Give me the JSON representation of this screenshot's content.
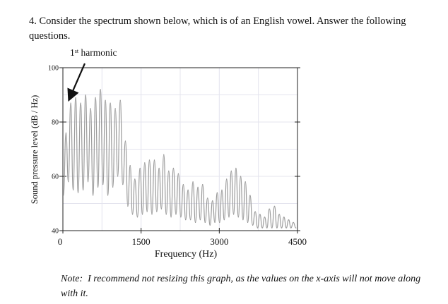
{
  "question": {
    "text": "4. Consider the spectrum shown below, which is of an English vowel. Answer the following questions."
  },
  "annotation": {
    "ordinal": "1",
    "ordinal_suffix": "st",
    "label": "harmonic"
  },
  "chart_data": {
    "type": "line",
    "title": "",
    "xlabel": "Frequency (Hz)",
    "ylabel": "Sound pressure level (dB / Hz)",
    "xlim": [
      0,
      4500
    ],
    "ylim": [
      40,
      100
    ],
    "x_ticks": [
      "0",
      "1500",
      "3000",
      "4500"
    ],
    "y_ticks": [
      "100",
      "80",
      "60",
      "40"
    ],
    "grid": true,
    "line_color": "#9a9a9a",
    "grid_color": "#e4e4ee",
    "peaks": [
      {
        "x": 60,
        "y": 76
      },
      {
        "x": 150,
        "y": 87
      },
      {
        "x": 245,
        "y": 89
      },
      {
        "x": 340,
        "y": 87
      },
      {
        "x": 435,
        "y": 90
      },
      {
        "x": 530,
        "y": 85
      },
      {
        "x": 625,
        "y": 89
      },
      {
        "x": 720,
        "y": 92
      },
      {
        "x": 815,
        "y": 88
      },
      {
        "x": 910,
        "y": 87
      },
      {
        "x": 1005,
        "y": 85
      },
      {
        "x": 1100,
        "y": 88
      },
      {
        "x": 1200,
        "y": 73
      },
      {
        "x": 1290,
        "y": 64
      },
      {
        "x": 1380,
        "y": 59
      },
      {
        "x": 1480,
        "y": 63
      },
      {
        "x": 1570,
        "y": 65
      },
      {
        "x": 1660,
        "y": 66
      },
      {
        "x": 1755,
        "y": 66
      },
      {
        "x": 1845,
        "y": 63
      },
      {
        "x": 1935,
        "y": 68
      },
      {
        "x": 2030,
        "y": 62
      },
      {
        "x": 2120,
        "y": 63
      },
      {
        "x": 2215,
        "y": 61
      },
      {
        "x": 2310,
        "y": 57
      },
      {
        "x": 2400,
        "y": 55
      },
      {
        "x": 2495,
        "y": 58
      },
      {
        "x": 2590,
        "y": 56
      },
      {
        "x": 2680,
        "y": 57
      },
      {
        "x": 2775,
        "y": 52
      },
      {
        "x": 2870,
        "y": 51
      },
      {
        "x": 2960,
        "y": 54
      },
      {
        "x": 3050,
        "y": 55
      },
      {
        "x": 3140,
        "y": 59
      },
      {
        "x": 3230,
        "y": 62
      },
      {
        "x": 3320,
        "y": 63
      },
      {
        "x": 3410,
        "y": 60
      },
      {
        "x": 3500,
        "y": 58
      },
      {
        "x": 3590,
        "y": 53
      },
      {
        "x": 3690,
        "y": 47
      },
      {
        "x": 3780,
        "y": 46
      },
      {
        "x": 3870,
        "y": 45
      },
      {
        "x": 3960,
        "y": 48
      },
      {
        "x": 4060,
        "y": 49
      },
      {
        "x": 4150,
        "y": 46
      },
      {
        "x": 4240,
        "y": 45
      },
      {
        "x": 4330,
        "y": 44
      },
      {
        "x": 4420,
        "y": 43
      }
    ],
    "valleys": [
      {
        "x": 10,
        "y": 53
      },
      {
        "x": 105,
        "y": 58
      },
      {
        "x": 198,
        "y": 55
      },
      {
        "x": 292,
        "y": 54
      },
      {
        "x": 388,
        "y": 55
      },
      {
        "x": 482,
        "y": 58
      },
      {
        "x": 578,
        "y": 53
      },
      {
        "x": 672,
        "y": 56
      },
      {
        "x": 768,
        "y": 57
      },
      {
        "x": 862,
        "y": 53
      },
      {
        "x": 958,
        "y": 56
      },
      {
        "x": 1052,
        "y": 60
      },
      {
        "x": 1150,
        "y": 57
      },
      {
        "x": 1245,
        "y": 49
      },
      {
        "x": 1335,
        "y": 46
      },
      {
        "x": 1430,
        "y": 45
      },
      {
        "x": 1525,
        "y": 46
      },
      {
        "x": 1615,
        "y": 47
      },
      {
        "x": 1708,
        "y": 46
      },
      {
        "x": 1800,
        "y": 47
      },
      {
        "x": 1890,
        "y": 48
      },
      {
        "x": 1982,
        "y": 46
      },
      {
        "x": 2075,
        "y": 45
      },
      {
        "x": 2168,
        "y": 46
      },
      {
        "x": 2262,
        "y": 45
      },
      {
        "x": 2355,
        "y": 44
      },
      {
        "x": 2448,
        "y": 44
      },
      {
        "x": 2542,
        "y": 43
      },
      {
        "x": 2635,
        "y": 44
      },
      {
        "x": 2728,
        "y": 43
      },
      {
        "x": 2822,
        "y": 42
      },
      {
        "x": 2915,
        "y": 43
      },
      {
        "x": 3005,
        "y": 43
      },
      {
        "x": 3095,
        "y": 44
      },
      {
        "x": 3185,
        "y": 45
      },
      {
        "x": 3275,
        "y": 46
      },
      {
        "x": 3365,
        "y": 45
      },
      {
        "x": 3455,
        "y": 44
      },
      {
        "x": 3545,
        "y": 43
      },
      {
        "x": 3640,
        "y": 42
      },
      {
        "x": 3735,
        "y": 41
      },
      {
        "x": 3825,
        "y": 41
      },
      {
        "x": 3915,
        "y": 41
      },
      {
        "x": 4010,
        "y": 41
      },
      {
        "x": 4105,
        "y": 41
      },
      {
        "x": 4195,
        "y": 41
      },
      {
        "x": 4285,
        "y": 41
      },
      {
        "x": 4375,
        "y": 41
      },
      {
        "x": 4470,
        "y": 41
      }
    ]
  },
  "note": {
    "lead": "Note:",
    "text": "I recommend not resizing this graph, as the values on the x-axis will not move along with it."
  }
}
